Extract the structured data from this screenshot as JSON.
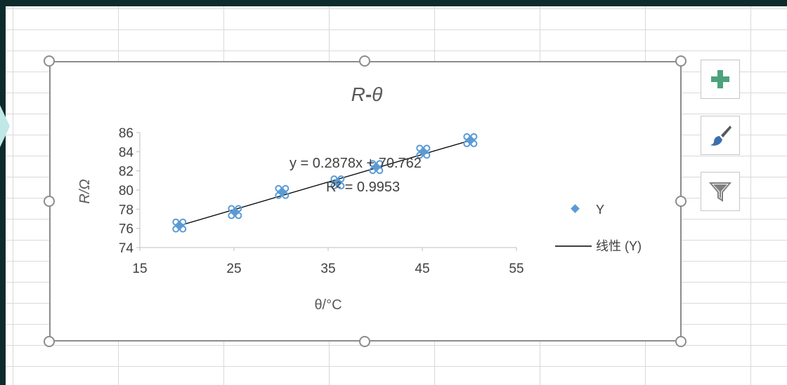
{
  "chart_data": {
    "type": "scatter",
    "title": "R-θ",
    "title_parts": {
      "r": "R",
      "dash": "-",
      "theta": "θ"
    },
    "xlabel": "θ/°C",
    "ylabel": "R/Ω",
    "xlim": [
      15,
      55
    ],
    "ylim": [
      74,
      86
    ],
    "xticks": [
      "15",
      "25",
      "35",
      "45",
      "55"
    ],
    "yticks": [
      "74",
      "76",
      "78",
      "80",
      "82",
      "84",
      "86"
    ],
    "series": [
      {
        "name": "Y",
        "marker": "diamond",
        "color": "#5b9bd5",
        "x": [
          19.2,
          25.1,
          30.1,
          36.0,
          40.1,
          45.1,
          50.1
        ],
        "y": [
          76.3,
          77.7,
          79.8,
          80.8,
          82.4,
          84.0,
          85.2
        ]
      }
    ],
    "trendline": {
      "name": "线性 (Y)",
      "slope": 0.2878,
      "intercept": 70.762,
      "color": "#000000"
    },
    "equation": "y = 0.2878x + 70.762",
    "r2": "R² = 0.9953",
    "legend_position": "right",
    "grid": false
  },
  "side_buttons": [
    {
      "icon": "plus-icon",
      "label": "Chart Elements",
      "color": "#4ca27c"
    },
    {
      "icon": "brush-icon",
      "label": "Chart Styles",
      "color": "#3c6fb0"
    },
    {
      "icon": "filter-icon",
      "label": "Chart Filters",
      "color": "#7f7f7f"
    }
  ]
}
